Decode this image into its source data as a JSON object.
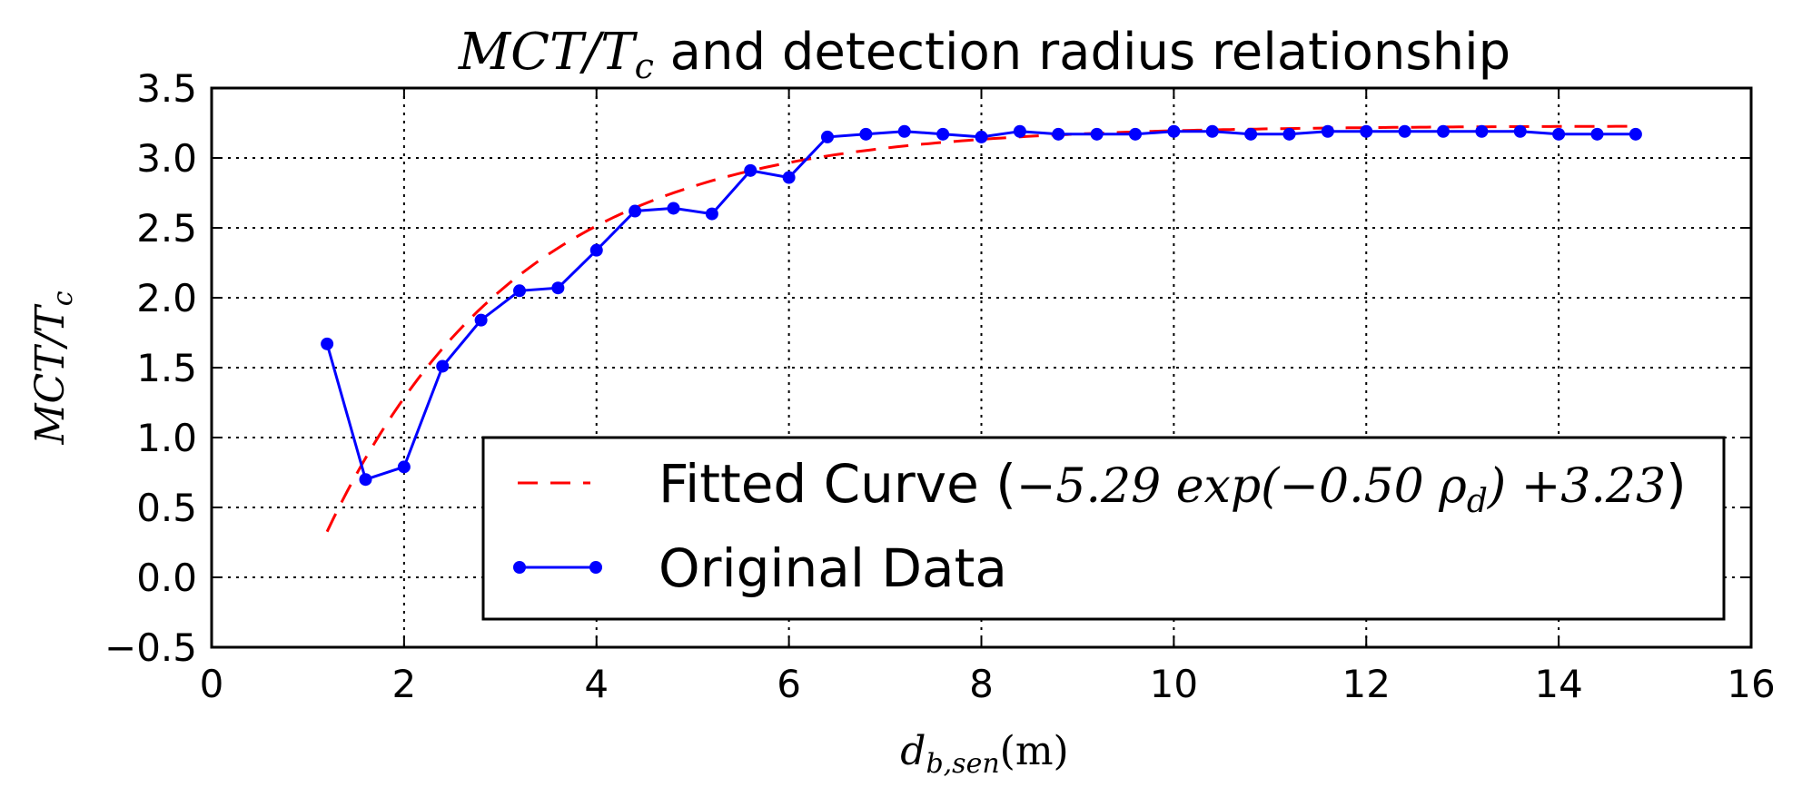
{
  "chart_data": {
    "type": "line",
    "title": "MCT/Tc and detection radius relationship",
    "title_math": "MCT/T",
    "title_math_sub": "c",
    "title_rest": " and detection radius relationship",
    "xlabel": "d_{b,sen}(m)",
    "xlabel_main": "d",
    "xlabel_sub": "b,sen",
    "xlabel_rest": "(m)",
    "ylabel": "MCT/T_c",
    "ylabel_main": "MCT/T",
    "ylabel_sub": "c",
    "xlim": [
      0,
      16
    ],
    "ylim": [
      -0.5,
      3.5
    ],
    "xticks": [
      0,
      2,
      4,
      6,
      8,
      10,
      12,
      14,
      16
    ],
    "xtick_labels": [
      "0",
      "2",
      "4",
      "6",
      "8",
      "10",
      "12",
      "14",
      "16"
    ],
    "yticks": [
      -0.5,
      0.0,
      0.5,
      1.0,
      1.5,
      2.0,
      2.5,
      3.0,
      3.5
    ],
    "ytick_labels": [
      "−0.5",
      "0.0",
      "0.5",
      "1.0",
      "1.5",
      "2.0",
      "2.5",
      "3.0",
      "3.5"
    ],
    "grid": true,
    "legend_position": "lower-right",
    "series": [
      {
        "name": "Fitted Curve (−5.29 exp(−0.50 ρd) +3.23)",
        "legend_prefix": "Fitted Curve (",
        "legend_math": "−5.29 exp(−0.50 ρ",
        "legend_math_sub": "d",
        "legend_math_tail": ") +3.23",
        "legend_suffix": ")",
        "style": "dashed",
        "color": "#ff0000",
        "function": {
          "a": -5.29,
          "b": -0.5,
          "c": 3.23
        },
        "x_range": [
          1.2,
          14.8
        ]
      },
      {
        "name": "Original Data",
        "style": "solid-marker",
        "color": "#0000ff",
        "x": [
          1.2,
          1.6,
          2.0,
          2.4,
          2.8,
          3.2,
          3.6,
          4.0,
          4.4,
          4.8,
          5.2,
          5.6,
          6.0,
          6.4,
          6.8,
          7.2,
          7.6,
          8.0,
          8.4,
          8.8,
          9.2,
          9.6,
          10.0,
          10.4,
          10.8,
          11.2,
          11.6,
          12.0,
          12.4,
          12.8,
          13.2,
          13.6,
          14.0,
          14.4,
          14.8
        ],
        "y": [
          1.67,
          0.7,
          0.79,
          1.51,
          1.84,
          2.05,
          2.07,
          2.34,
          2.62,
          2.64,
          2.6,
          2.91,
          2.86,
          3.15,
          3.17,
          3.19,
          3.17,
          3.15,
          3.19,
          3.17,
          3.17,
          3.17,
          3.19,
          3.19,
          3.17,
          3.17,
          3.19,
          3.19,
          3.19,
          3.19,
          3.19,
          3.19,
          3.17,
          3.17,
          3.17
        ]
      }
    ]
  }
}
